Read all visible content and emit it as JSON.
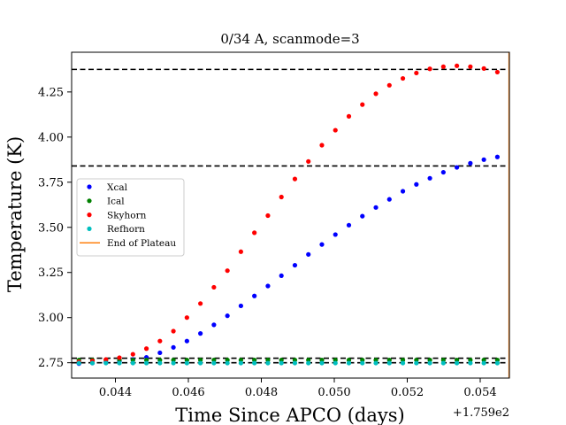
{
  "chart_data": {
    "type": "scatter",
    "title": "0/34 A, scanmode=3",
    "xlabel": "Time Since APCO (days)",
    "ylabel": "Temperature (K)",
    "x_offset_label": "+1.759e2",
    "xlim": [
      0.0428,
      0.0548
    ],
    "ylim": [
      2.665,
      4.47
    ],
    "x_ticks": [
      0.044,
      0.046,
      0.048,
      0.05,
      0.052,
      0.054
    ],
    "x_tick_labels": [
      "0.044",
      "0.046",
      "0.048",
      "0.050",
      "0.052",
      "0.054"
    ],
    "y_ticks": [
      2.75,
      3.0,
      3.25,
      3.5,
      3.75,
      4.0,
      4.25
    ],
    "y_tick_labels": [
      "2.75",
      "3.00",
      "3.25",
      "3.50",
      "3.75",
      "4.00",
      "4.25"
    ],
    "grid": false,
    "legend_position": "center-left",
    "hlines": [
      {
        "y": 4.375,
        "color": "#000000",
        "style": "dashed"
      },
      {
        "y": 3.84,
        "color": "#000000",
        "style": "dashed"
      },
      {
        "y": 2.775,
        "color": "#000000",
        "style": "dashed"
      },
      {
        "y": 2.75,
        "color": "#000000",
        "style": "dashed"
      }
    ],
    "x": [
      0.043,
      0.04337,
      0.04374,
      0.04411,
      0.04448,
      0.04485,
      0.04522,
      0.04559,
      0.04596,
      0.04633,
      0.0467,
      0.04707,
      0.04744,
      0.04781,
      0.04818,
      0.04855,
      0.04892,
      0.04929,
      0.04966,
      0.05003,
      0.0504,
      0.05077,
      0.05114,
      0.05151,
      0.05188,
      0.05225,
      0.05262,
      0.05299,
      0.05336,
      0.05373,
      0.0541,
      0.05447,
      0.05484
    ],
    "series": [
      {
        "name": "Xcal",
        "color": "#0000ff",
        "values": [
          2.745,
          2.748,
          2.752,
          2.758,
          2.768,
          2.78,
          2.805,
          2.835,
          2.87,
          2.912,
          2.96,
          3.01,
          3.065,
          3.12,
          3.175,
          3.232,
          3.29,
          3.35,
          3.405,
          3.46,
          3.512,
          3.562,
          3.61,
          3.655,
          3.7,
          3.738,
          3.772,
          3.805,
          3.832,
          3.855,
          3.875,
          3.89,
          3.905
        ]
      },
      {
        "name": "Ical",
        "color": "#008000",
        "values": [
          2.765,
          2.765,
          2.765,
          2.765,
          2.765,
          2.765,
          2.765,
          2.765,
          2.765,
          2.765,
          2.765,
          2.765,
          2.765,
          2.765,
          2.765,
          2.765,
          2.765,
          2.765,
          2.765,
          2.765,
          2.765,
          2.765,
          2.765,
          2.765,
          2.765,
          2.765,
          2.765,
          2.765,
          2.765,
          2.765,
          2.765,
          2.765,
          2.765
        ]
      },
      {
        "name": "Skyhorn",
        "color": "#ff0000",
        "values": [
          2.755,
          2.76,
          2.768,
          2.778,
          2.797,
          2.828,
          2.87,
          2.925,
          3.0,
          3.078,
          3.168,
          3.26,
          3.365,
          3.47,
          3.565,
          3.668,
          3.768,
          3.865,
          3.955,
          4.038,
          4.115,
          4.18,
          4.24,
          4.287,
          4.325,
          4.355,
          4.378,
          4.39,
          4.395,
          4.39,
          4.38,
          4.36,
          4.34
        ]
      },
      {
        "name": "Refhorn",
        "color": "#00bfbf",
        "values": [
          2.748,
          2.748,
          2.748,
          2.748,
          2.748,
          2.748,
          2.748,
          2.748,
          2.748,
          2.748,
          2.748,
          2.748,
          2.748,
          2.748,
          2.748,
          2.748,
          2.748,
          2.748,
          2.748,
          2.748,
          2.748,
          2.748,
          2.748,
          2.748,
          2.748,
          2.748,
          2.748,
          2.748,
          2.748,
          2.748,
          2.748,
          2.748,
          2.748
        ]
      }
    ],
    "vline": {
      "name": "End of Plateau",
      "x": 0.05479,
      "color": "#ff7f0e"
    }
  }
}
